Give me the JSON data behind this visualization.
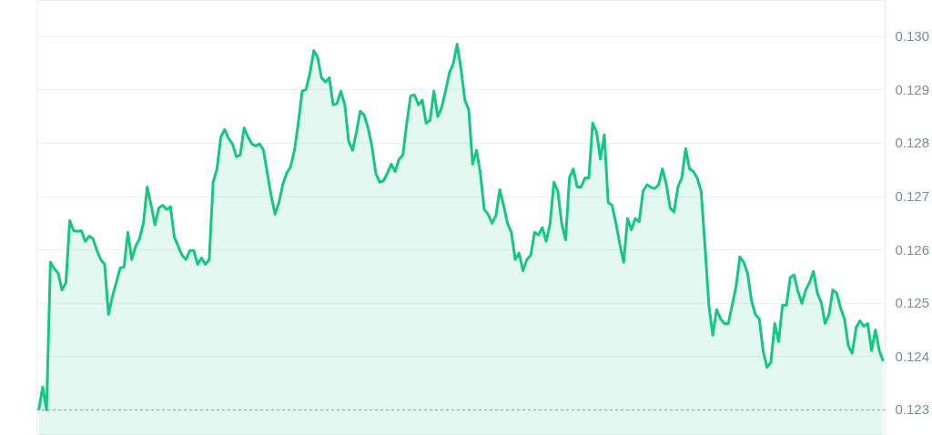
{
  "chart_data": {
    "type": "area",
    "categories": [
      null,
      null,
      null,
      null,
      null,
      null,
      null,
      null,
      null,
      null,
      null,
      null,
      null,
      null,
      null,
      null,
      null,
      null,
      null,
      null,
      null,
      null,
      null,
      null,
      null,
      null,
      null,
      null,
      null,
      null,
      null,
      null,
      null,
      null,
      null,
      null,
      null,
      null,
      null,
      null,
      null,
      null,
      null,
      null,
      null,
      null,
      null,
      null,
      null,
      null,
      null,
      null,
      null,
      null,
      null,
      null,
      null,
      null,
      null,
      null,
      null,
      null,
      null,
      null,
      null,
      null,
      null,
      null,
      null,
      null,
      null,
      null,
      null,
      null,
      null,
      null,
      null,
      null,
      null,
      null,
      null,
      null,
      null,
      null,
      null,
      null,
      null,
      null,
      null,
      null,
      null,
      null,
      null,
      null,
      null,
      null,
      null,
      null,
      null,
      null,
      null,
      null,
      null,
      null,
      null,
      null,
      null,
      null,
      null,
      null,
      null,
      null,
      null,
      null,
      null,
      null,
      null,
      null,
      null,
      null,
      null,
      null,
      null,
      null,
      null,
      null,
      null,
      null,
      null,
      null,
      null,
      null,
      null,
      null,
      null,
      null,
      null,
      null,
      null,
      null,
      null,
      null,
      null,
      null,
      null,
      null,
      null,
      null,
      null,
      null,
      null,
      null,
      null,
      null,
      null,
      null,
      null,
      null,
      null,
      null,
      null,
      null,
      null,
      null,
      null,
      null,
      null,
      null,
      null,
      null,
      null,
      null,
      null,
      null,
      null,
      null,
      null,
      null,
      null,
      null,
      null,
      null,
      null,
      null,
      null,
      null,
      null,
      null,
      null,
      null,
      null,
      null,
      null,
      null,
      null,
      null,
      null,
      null,
      null,
      null,
      null,
      null,
      null,
      null,
      null,
      null,
      null,
      null,
      null,
      null,
      null,
      null,
      null,
      null,
      null,
      null,
      null,
      null,
      null
    ],
    "series": [
      {
        "color": "#16c784",
        "values": [
          0.123,
          0.12343,
          0.123,
          0.12577,
          0.12565,
          0.12556,
          0.12525,
          0.12539,
          0.12655,
          0.12636,
          0.12635,
          0.12636,
          0.12616,
          0.12626,
          0.12621,
          0.12599,
          0.12582,
          0.12573,
          0.12479,
          0.12513,
          0.12539,
          0.12566,
          0.12568,
          0.12633,
          0.12582,
          0.12607,
          0.12621,
          0.1265,
          0.12718,
          0.12684,
          0.12647,
          0.12679,
          0.12684,
          0.12676,
          0.12681,
          0.12624,
          0.12607,
          0.1259,
          0.12582,
          0.12599,
          0.12599,
          0.12573,
          0.12585,
          0.12573,
          0.12582,
          0.12727,
          0.12752,
          0.12812,
          0.12826,
          0.12809,
          0.12799,
          0.12775,
          0.12778,
          0.12829,
          0.12812,
          0.12799,
          0.12795,
          0.12799,
          0.12787,
          0.12744,
          0.12701,
          0.12667,
          0.12689,
          0.12723,
          0.12744,
          0.12756,
          0.12787,
          0.12838,
          0.12898,
          0.12901,
          0.12932,
          0.12974,
          0.12961,
          0.12923,
          0.12915,
          0.12923,
          0.12872,
          0.12875,
          0.12898,
          0.12872,
          0.12804,
          0.12787,
          0.12821,
          0.1286,
          0.12853,
          0.12829,
          0.12795,
          0.12744,
          0.12727,
          0.1273,
          0.12744,
          0.12761,
          0.12747,
          0.1277,
          0.12778,
          0.12838,
          0.12889,
          0.12891,
          0.12872,
          0.12881,
          0.12838,
          0.12843,
          0.12898,
          0.1285,
          0.12867,
          0.12898,
          0.12932,
          0.12949,
          0.12986,
          0.1294,
          0.12881,
          0.12863,
          0.12761,
          0.12787,
          0.12744,
          0.12676,
          0.12667,
          0.1265,
          0.12664,
          0.12713,
          0.12684,
          0.1265,
          0.12633,
          0.12582,
          0.12594,
          0.12561,
          0.12582,
          0.1259,
          0.12633,
          0.12628,
          0.12642,
          0.12616,
          0.1265,
          0.12727,
          0.1271,
          0.1265,
          0.12619,
          0.12735,
          0.12752,
          0.12718,
          0.12718,
          0.12735,
          0.12735,
          0.12838,
          0.12821,
          0.1277,
          0.12816,
          0.12689,
          0.12684,
          0.1265,
          0.12611,
          0.12577,
          0.12659,
          0.12638,
          0.12659,
          0.12653,
          0.1271,
          0.12722,
          0.12718,
          0.12715,
          0.12722,
          0.12752,
          0.12723,
          0.12679,
          0.12671,
          0.12718,
          0.12735,
          0.1279,
          0.12752,
          0.12747,
          0.12735,
          0.1271,
          0.12607,
          0.12496,
          0.1244,
          0.12488,
          0.12471,
          0.12462,
          0.12462,
          0.12496,
          0.12531,
          0.12587,
          0.12577,
          0.12556,
          0.12505,
          0.12479,
          0.12471,
          0.12411,
          0.1238,
          0.12389,
          0.12462,
          0.12428,
          0.12496,
          0.12496,
          0.12548,
          0.12553,
          0.12522,
          0.125,
          0.12525,
          0.12539,
          0.1256,
          0.12519,
          0.12502,
          0.12462,
          0.12479,
          0.12525,
          0.12519,
          0.12491,
          0.12471,
          0.1242,
          0.12406,
          0.12454,
          0.12467,
          0.12457,
          0.12462,
          0.12411,
          0.1245,
          0.12411,
          0.12391
        ]
      }
    ],
    "ylim": [
      0.12252,
      0.13068
    ],
    "yticks": [
      {
        "value": 0.123,
        "label": "0.123"
      },
      {
        "value": 0.124,
        "label": "0.124"
      },
      {
        "value": 0.125,
        "label": "0.125"
      },
      {
        "value": 0.126,
        "label": "0.126"
      },
      {
        "value": 0.127,
        "label": "0.127"
      },
      {
        "value": 0.128,
        "label": "0.128"
      },
      {
        "value": 0.129,
        "label": "0.129"
      },
      {
        "value": 0.13,
        "label": "0.130"
      }
    ],
    "grid": "y",
    "tick_labels": "y",
    "ref_lines": [
      {
        "axis": "y",
        "value": 0.123,
        "color": "#a0a0a0",
        "line_style": "dotted"
      }
    ]
  }
}
